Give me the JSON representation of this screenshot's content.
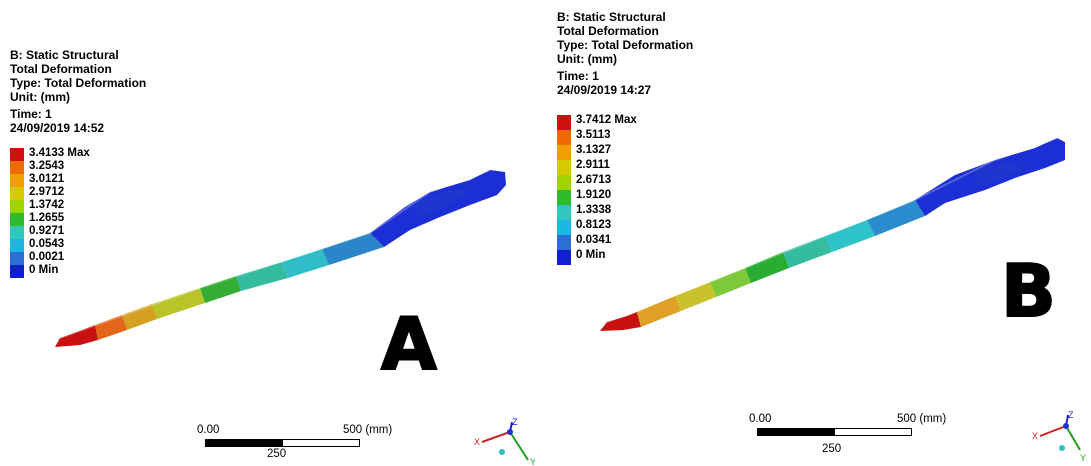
{
  "panels": [
    {
      "header": {
        "line1": "B: Static Structural",
        "line2": "Total Deformation",
        "line3": "Type: Total Deformation",
        "line4": "Unit: (mm)",
        "line5": "Time: 1",
        "line6": "24/09/2019 14:52"
      },
      "legend": [
        {
          "label": "3.4133 Max",
          "color": "#d01010"
        },
        {
          "label": "3.2543",
          "color": "#ef6a00"
        },
        {
          "label": "3.0121",
          "color": "#efa000"
        },
        {
          "label": "2.9712",
          "color": "#d4cc00"
        },
        {
          "label": "1.3742",
          "color": "#a0d400"
        },
        {
          "label": "1.2655",
          "color": "#2ebc2e"
        },
        {
          "label": "0.9271",
          "color": "#30c7bc"
        },
        {
          "label": "0.0543",
          "color": "#1ab8e0"
        },
        {
          "label": "0.0021",
          "color": "#2a6fd8"
        },
        {
          "label": "0 Min",
          "color": "#1020d0"
        }
      ],
      "letter": "A",
      "scale": {
        "start": "0.00",
        "end": "500 (mm)",
        "mid": "250"
      }
    },
    {
      "header": {
        "line1": "B: Static Structural",
        "line2": "Total Deformation",
        "line3": "Type: Total Deformation",
        "line4": "Unit: (mm)",
        "line5": "Time: 1",
        "line6": "24/09/2019 14:27"
      },
      "legend": [
        {
          "label": "3.7412 Max",
          "color": "#d01010"
        },
        {
          "label": "3.5113",
          "color": "#ef6a00"
        },
        {
          "label": "3.1327",
          "color": "#efa000"
        },
        {
          "label": "2.9111",
          "color": "#d4cc00"
        },
        {
          "label": "2.6713",
          "color": "#a0d400"
        },
        {
          "label": "1.9120",
          "color": "#2ebc2e"
        },
        {
          "label": "1.3338",
          "color": "#30c7bc"
        },
        {
          "label": "0.8123",
          "color": "#1ab8e0"
        },
        {
          "label": "0.0341",
          "color": "#2a6fd8"
        },
        {
          "label": "0 Min",
          "color": "#1020d0"
        }
      ],
      "letter": "B",
      "scale": {
        "start": "0.00",
        "end": "500 (mm)",
        "mid": "250"
      }
    }
  ],
  "axes_labels": {
    "x": "X",
    "y": "Y",
    "z": "Z"
  }
}
